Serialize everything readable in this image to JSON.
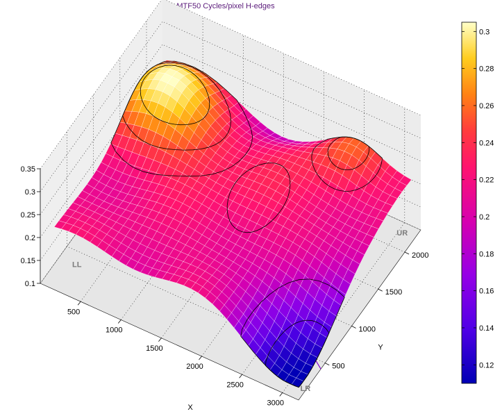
{
  "chart_data": {
    "type": "surface",
    "title": "MTF50 Cycles/pixel   H-edges",
    "xlabel": "X",
    "ylabel": "Y",
    "zlabel": "",
    "xlim": [
      0,
      3200
    ],
    "ylim": [
      0,
      2300
    ],
    "zlim": [
      0.1,
      0.35
    ],
    "x_ticks": [
      "500",
      "1000",
      "1500",
      "2000",
      "2500",
      "3000"
    ],
    "y_ticks": [
      "500",
      "1000",
      "1500",
      "2000"
    ],
    "z_ticks": [
      "0.1",
      "0.15",
      "0.2",
      "0.25",
      "0.3",
      "0.35"
    ],
    "corner_labels": [
      "LL",
      "LR",
      "UR"
    ],
    "colorbar": {
      "colormap": "plasma-like (blue-purple-magenta-red-orange-yellow-white)",
      "range": [
        0.11,
        0.305
      ],
      "ticks": [
        "0.12",
        "0.14",
        "0.16",
        "0.18",
        "0.2",
        "0.22",
        "0.24",
        "0.26",
        "0.28",
        "0.3"
      ]
    },
    "grid": true,
    "surface_peaks": [
      {
        "x": 500,
        "y": 1700,
        "mtf50": 0.3
      },
      {
        "x": 2500,
        "y": 2100,
        "mtf50": 0.27
      },
      {
        "x": 3150,
        "y": 150,
        "mtf50": 0.12
      }
    ]
  },
  "colors": {
    "title": "#5a1a7a",
    "axes_bg": "#e6e6e6",
    "contour": "#000000",
    "mesh": "#ffffff"
  }
}
